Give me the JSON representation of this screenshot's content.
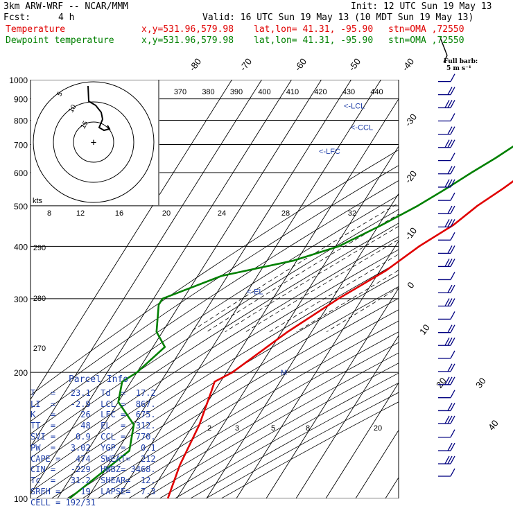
{
  "header": {
    "model": "3km ARW-WRF -- NCAR/MMM",
    "init": "Init: 12 UTC Sun 19 May 13",
    "fcst_label": "Fcst:",
    "fcst_value": "4 h",
    "valid": "Valid: 16 UTC Sun 19 May 13 (10 MDT Sun 19 May 13)",
    "temp_line": {
      "name": "Temperature",
      "xy": "x,y=531.96,579.98",
      "latlon": "lat,lon= 41.31, -95.90",
      "stn": "stn=OMA ,72550",
      "color": "#e00000"
    },
    "dew_line": {
      "name": "Dewpoint temperature",
      "xy": "x,y=531.96,579.98",
      "latlon": "lat,lon= 41.31, -95.90",
      "stn": "stn=OMA ,72550",
      "color": "#008000"
    }
  },
  "barb_label": {
    "line1": "Full barb:",
    "line2": "5 m s⁻¹"
  },
  "hodograph": {
    "units": "kts",
    "ring_labels": [
      "5",
      "10",
      "15"
    ]
  },
  "parcel_info": {
    "title": "Parcel Info",
    "rows": [
      "T   =   23.1  Td  =  17.2",
      "LI  =   -2.9  LCL =  867.",
      "K   =     26  LFC =  675.",
      "TT  =     48  EL  =  312.",
      "SVI =    0.9  CCL =  770.",
      "PW  =   3.02  YGP =   0.1",
      "CAPE =   474  SWEAT=  212",
      "CIN =   -229  HWBZ= 3468.",
      "Tc  =   31.2  SHEAR=  12.",
      "SREH =    19  LAPSE=  7.3",
      "CELL = 192/31"
    ]
  },
  "chart_data": {
    "type": "line",
    "diagram": "skew-T log-p",
    "y_axis": {
      "scale": "log",
      "direction": "decreasing upward",
      "range": [
        1000,
        100
      ],
      "ticks": [
        100,
        200,
        300,
        400,
        500,
        600,
        700,
        800,
        900,
        1000
      ]
    },
    "isotherm_labels": [
      "-80",
      "-70",
      "-60",
      "-50",
      "-40",
      "-30",
      "-20",
      "-10",
      "0",
      "10",
      "20",
      "30",
      "40"
    ],
    "theta_labels_top": [
      "370",
      "380",
      "390",
      "400",
      "410",
      "420",
      "430",
      "440"
    ],
    "theta_labels_left": [
      "290",
      "280",
      "270"
    ],
    "mixing_ratio_labels_low": [
      "2",
      "3",
      "5",
      "8",
      "20"
    ],
    "mixing_ratio_labels_high": [
      "8",
      "12",
      "16",
      "20",
      "24",
      "28",
      "32"
    ],
    "level_markers": [
      {
        "label": "<-EL",
        "p": 312
      },
      {
        "label": "<-LFC",
        "p": 675
      },
      {
        "label": "<-CCL",
        "p": 770
      },
      {
        "label": "<-LCL",
        "p": 867
      }
    ],
    "series": [
      {
        "name": "Temperature",
        "color": "#e00000",
        "points": [
          [
            100,
            -53
          ],
          [
            120,
            -56
          ],
          [
            150,
            -58
          ],
          [
            180,
            -61
          ],
          [
            190,
            -62
          ],
          [
            200,
            -58
          ],
          [
            250,
            -48
          ],
          [
            300,
            -38
          ],
          [
            350,
            -28
          ],
          [
            400,
            -22
          ],
          [
            450,
            -15
          ],
          [
            500,
            -11
          ],
          [
            550,
            -6
          ],
          [
            600,
            -2
          ],
          [
            650,
            3
          ],
          [
            700,
            7
          ],
          [
            760,
            11
          ],
          [
            800,
            13
          ],
          [
            850,
            12
          ],
          [
            880,
            14
          ],
          [
            925,
            22
          ],
          [
            962,
            23.1
          ]
        ]
      },
      {
        "name": "Dewpoint temperature",
        "color": "#008000",
        "points": [
          [
            100,
            -86
          ],
          [
            130,
            -76
          ],
          [
            150,
            -80
          ],
          [
            170,
            -90
          ],
          [
            190,
            -93
          ],
          [
            200,
            -90
          ],
          [
            230,
            -86
          ],
          [
            250,
            -92
          ],
          [
            290,
            -97
          ],
          [
            300,
            -97
          ],
          [
            340,
            -82
          ],
          [
            370,
            -61
          ],
          [
            400,
            -49
          ],
          [
            450,
            -39
          ],
          [
            500,
            -31
          ],
          [
            550,
            -25
          ],
          [
            600,
            -20
          ],
          [
            650,
            -15
          ],
          [
            700,
            -11
          ],
          [
            760,
            -5
          ],
          [
            800,
            -1
          ],
          [
            850,
            6
          ],
          [
            880,
            17
          ],
          [
            925,
            18
          ],
          [
            962,
            17.2
          ]
        ]
      }
    ],
    "wind_barbs": true,
    "hodograph_inset": true
  }
}
